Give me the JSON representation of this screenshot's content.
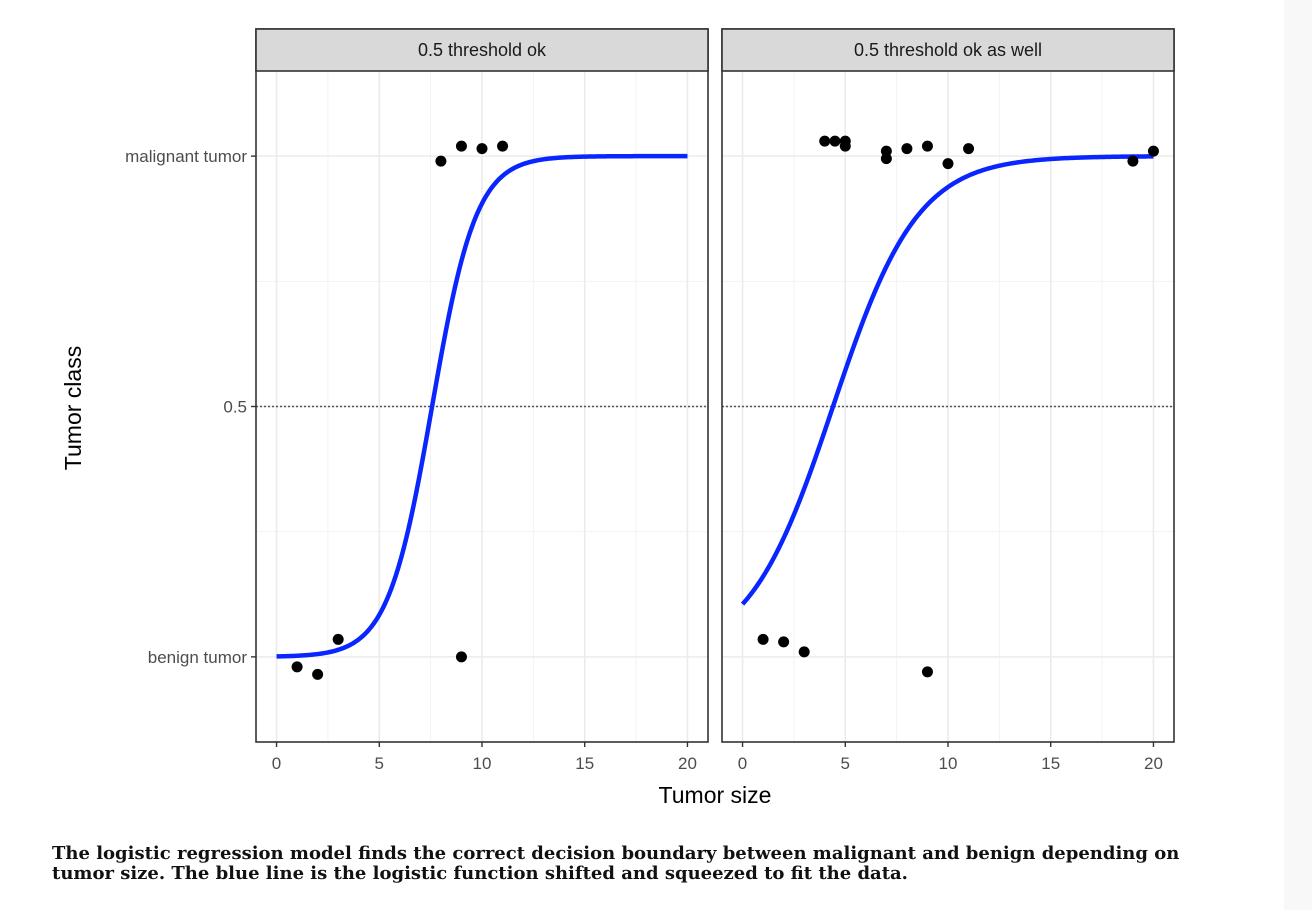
{
  "chart_data": {
    "type": "scatter",
    "xlabel": "Tumor size",
    "ylabel": "Tumor class",
    "y_tick_labels": {
      "malignant": "malignant tumor",
      "mid": "0.5",
      "benign": "benign tumor"
    },
    "threshold": 0.5,
    "ylim": [
      -0.17,
      1.17
    ],
    "grid": true,
    "colors": {
      "curve": "#0a26ff",
      "points": "#000000",
      "strip": "#d9d9d9",
      "threshold": "#555555",
      "grid": "#ebebeb"
    },
    "panels": [
      {
        "title": "0.5 threshold ok",
        "xlim": [
          -1,
          21
        ],
        "x_ticks": [
          0,
          5,
          10,
          15,
          20
        ],
        "x_tick_labels": [
          "0",
          "5",
          "10",
          "15",
          "20"
        ],
        "points": [
          {
            "x": 1,
            "y": -0.02
          },
          {
            "x": 2,
            "y": -0.035
          },
          {
            "x": 3,
            "y": 0.035
          },
          {
            "x": 9,
            "y": 0.0
          },
          {
            "x": 8,
            "y": 0.99
          },
          {
            "x": 9,
            "y": 1.02
          },
          {
            "x": 10,
            "y": 1.015
          },
          {
            "x": 11,
            "y": 1.02
          }
        ],
        "curve": {
          "intercept": -7.04,
          "slope": 0.93,
          "x_range": [
            0,
            20
          ]
        }
      },
      {
        "title": "0.5 threshold ok as well",
        "xlim": [
          -1,
          21
        ],
        "x_ticks": [
          0,
          5,
          10,
          15,
          20
        ],
        "x_tick_labels": [
          "0",
          "5",
          "10",
          "15",
          "20"
        ],
        "points": [
          {
            "x": 1,
            "y": 0.035
          },
          {
            "x": 2,
            "y": 0.03
          },
          {
            "x": 3,
            "y": 0.01
          },
          {
            "x": 9,
            "y": -0.03
          },
          {
            "x": 4,
            "y": 1.03
          },
          {
            "x": 4.5,
            "y": 1.03
          },
          {
            "x": 5,
            "y": 1.03
          },
          {
            "x": 5,
            "y": 1.02
          },
          {
            "x": 7,
            "y": 1.01
          },
          {
            "x": 7,
            "y": 0.995
          },
          {
            "x": 8,
            "y": 1.015
          },
          {
            "x": 9,
            "y": 1.02
          },
          {
            "x": 10,
            "y": 0.985
          },
          {
            "x": 11,
            "y": 1.015
          },
          {
            "x": 19,
            "y": 0.99
          },
          {
            "x": 20,
            "y": 1.01
          }
        ],
        "curve": {
          "intercept": -2.14,
          "slope": 0.486,
          "x_range": [
            0,
            20
          ]
        }
      }
    ]
  },
  "caption": "The logistic regression model finds the correct decision boundary between malignant and benign depending on tumor size. The blue line is the logistic function shifted and squeezed to fit the data."
}
